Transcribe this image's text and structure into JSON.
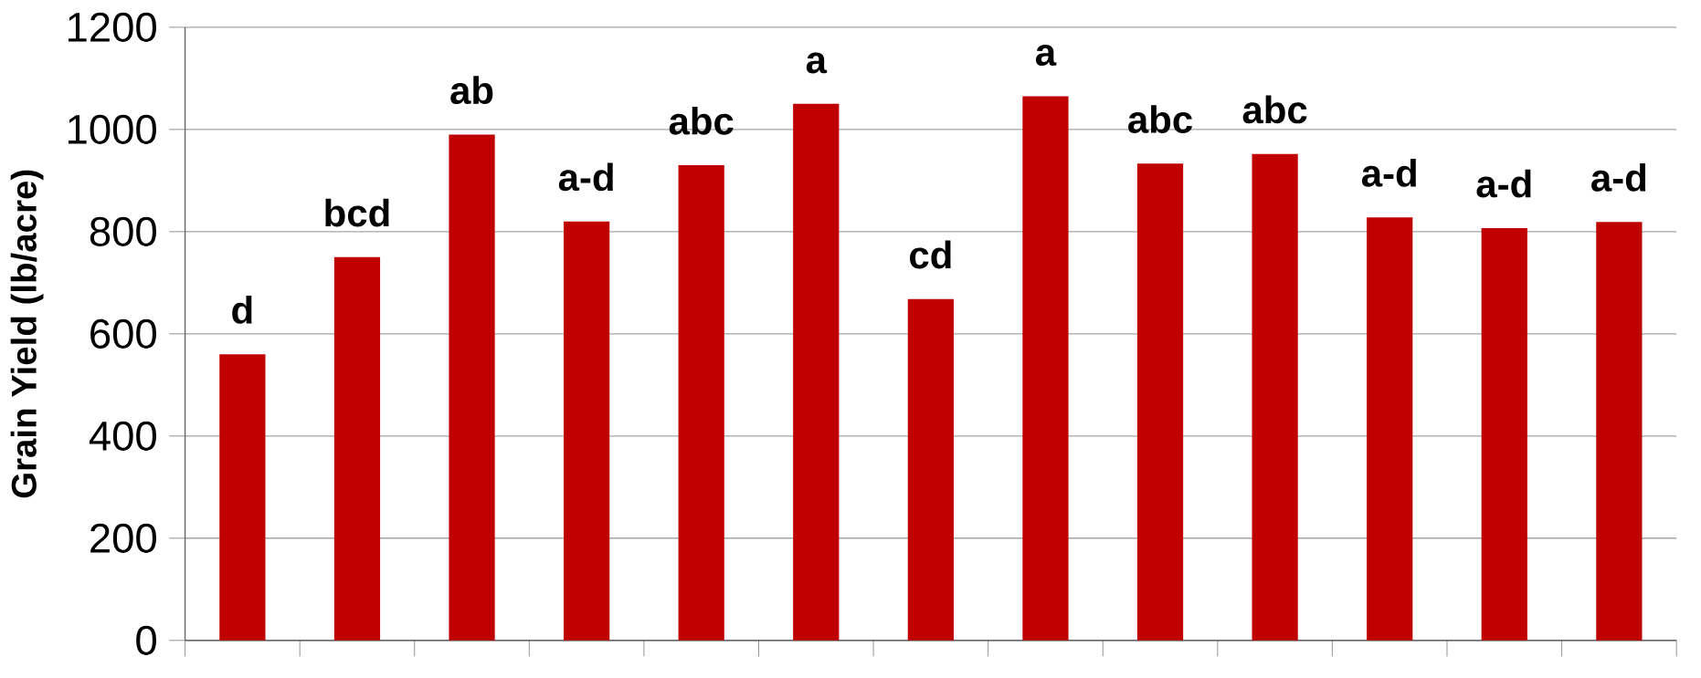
{
  "chart_data": {
    "type": "bar",
    "ylabel": "Grain Yield (lb/acre)",
    "categories": [
      null,
      null,
      null,
      null,
      null,
      null,
      null,
      null,
      null,
      null,
      null,
      null,
      null
    ],
    "values": [
      560,
      750,
      990,
      820,
      930,
      1050,
      668,
      1065,
      933,
      952,
      828,
      807,
      819
    ],
    "color": "#c00000",
    "ylim": [
      0,
      1200
    ],
    "yticks": [
      0,
      200,
      400,
      600,
      800,
      1000,
      1200
    ],
    "grid": "y",
    "tick_labels": "y",
    "annotations": [
      "d",
      "bcd",
      "ab",
      "a-d",
      "abc",
      "a",
      "cd",
      "a",
      "abc",
      "abc",
      "a-d",
      "a-d",
      "a-d"
    ]
  }
}
